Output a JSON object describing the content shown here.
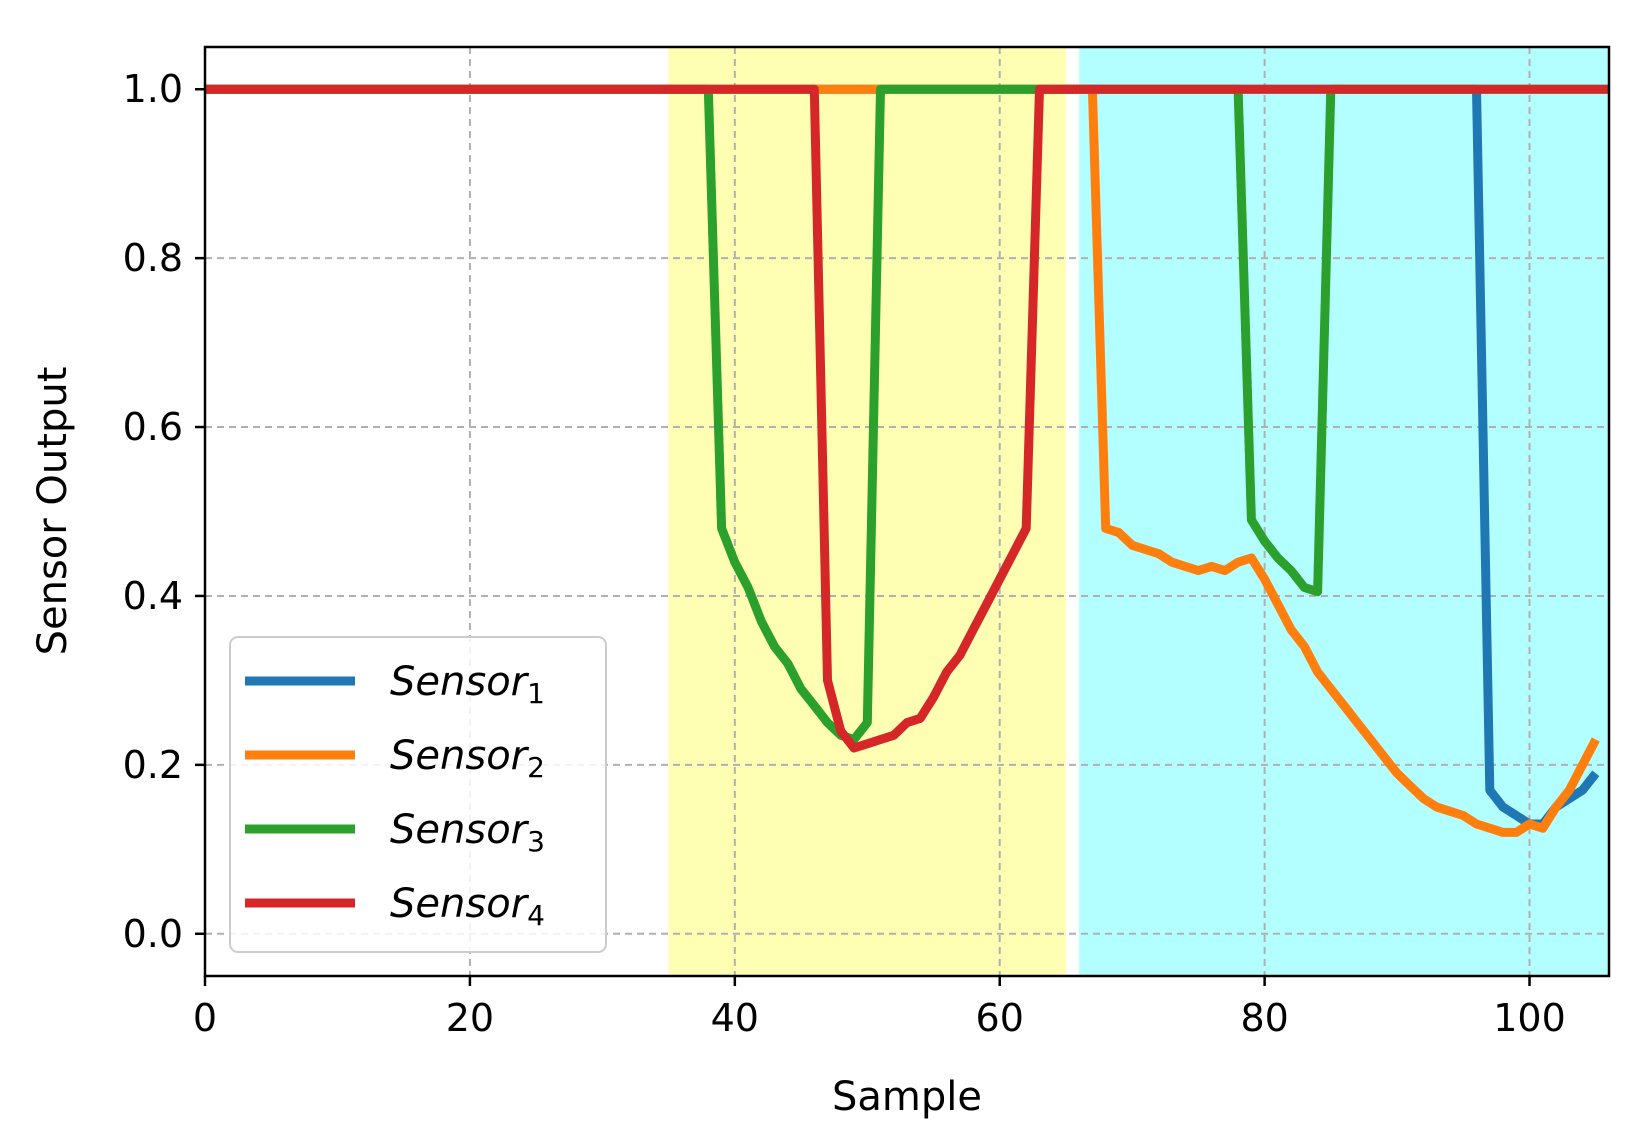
{
  "chart_data": {
    "type": "line",
    "title": "",
    "xlabel": "Sample",
    "ylabel": "Sensor Output",
    "xlim": [
      0,
      106
    ],
    "ylim": [
      -0.05,
      1.05
    ],
    "x_ticks": [
      0,
      20,
      40,
      60,
      80,
      100
    ],
    "y_ticks": [
      0.0,
      0.2,
      0.4,
      0.6,
      0.8,
      1.0
    ],
    "x_tick_labels": [
      "0",
      "20",
      "40",
      "60",
      "80",
      "100"
    ],
    "y_tick_labels": [
      "0.0",
      "0.2",
      "0.4",
      "0.6",
      "0.8",
      "1.0"
    ],
    "grid": true,
    "legend_position": "lower-left",
    "shaded_regions": [
      {
        "x_start": 35,
        "x_end": 65,
        "color": "#ffffb3"
      },
      {
        "x_start": 66,
        "x_end": 106,
        "color": "#b3ffff"
      }
    ],
    "series": [
      {
        "name_base": "Sensor",
        "name_sub": "1",
        "color": "#1f77b4",
        "points": [
          [
            0,
            1.0
          ],
          [
            96,
            1.0
          ],
          [
            97,
            0.17
          ],
          [
            98,
            0.15
          ],
          [
            99,
            0.14
          ],
          [
            100,
            0.13
          ],
          [
            101,
            0.13
          ],
          [
            102,
            0.15
          ],
          [
            103,
            0.16
          ],
          [
            104,
            0.17
          ],
          [
            105,
            0.19
          ]
        ]
      },
      {
        "name_base": "Sensor",
        "name_sub": "2",
        "color": "#ff7f0e",
        "points": [
          [
            0,
            1.0
          ],
          [
            67,
            1.0
          ],
          [
            68,
            0.48
          ],
          [
            69,
            0.475
          ],
          [
            70,
            0.46
          ],
          [
            71,
            0.455
          ],
          [
            72,
            0.45
          ],
          [
            73,
            0.44
          ],
          [
            74,
            0.435
          ],
          [
            75,
            0.43
          ],
          [
            76,
            0.435
          ],
          [
            77,
            0.43
          ],
          [
            78,
            0.44
          ],
          [
            79,
            0.445
          ],
          [
            80,
            0.42
          ],
          [
            81,
            0.39
          ],
          [
            82,
            0.36
          ],
          [
            83,
            0.34
          ],
          [
            84,
            0.31
          ],
          [
            85,
            0.29
          ],
          [
            86,
            0.27
          ],
          [
            87,
            0.25
          ],
          [
            88,
            0.23
          ],
          [
            89,
            0.21
          ],
          [
            90,
            0.19
          ],
          [
            91,
            0.175
          ],
          [
            92,
            0.16
          ],
          [
            93,
            0.15
          ],
          [
            94,
            0.145
          ],
          [
            95,
            0.14
          ],
          [
            96,
            0.13
          ],
          [
            97,
            0.125
          ],
          [
            98,
            0.12
          ],
          [
            99,
            0.12
          ],
          [
            100,
            0.13
          ],
          [
            101,
            0.125
          ],
          [
            102,
            0.15
          ],
          [
            103,
            0.17
          ],
          [
            104,
            0.2
          ],
          [
            105,
            0.23
          ]
        ]
      },
      {
        "name_base": "Sensor",
        "name_sub": "3",
        "color": "#2ca02c",
        "points": [
          [
            0,
            1.0
          ],
          [
            38,
            1.0
          ],
          [
            39,
            0.48
          ],
          [
            40,
            0.44
          ],
          [
            41,
            0.41
          ],
          [
            42,
            0.37
          ],
          [
            43,
            0.34
          ],
          [
            44,
            0.32
          ],
          [
            45,
            0.29
          ],
          [
            46,
            0.27
          ],
          [
            47,
            0.25
          ],
          [
            48,
            0.235
          ],
          [
            49,
            0.23
          ],
          [
            50,
            0.25
          ],
          [
            51,
            1.0
          ],
          [
            78,
            1.0
          ],
          [
            79,
            0.49
          ],
          [
            80,
            0.465
          ],
          [
            81,
            0.445
          ],
          [
            82,
            0.43
          ],
          [
            83,
            0.41
          ],
          [
            84,
            0.405
          ],
          [
            85,
            1.0
          ],
          [
            106,
            1.0
          ]
        ]
      },
      {
        "name_base": "Sensor",
        "name_sub": "4",
        "color": "#d62728",
        "points": [
          [
            0,
            1.0
          ],
          [
            46,
            1.0
          ],
          [
            47,
            0.3
          ],
          [
            48,
            0.24
          ],
          [
            49,
            0.22
          ],
          [
            50,
            0.225
          ],
          [
            51,
            0.23
          ],
          [
            52,
            0.235
          ],
          [
            53,
            0.25
          ],
          [
            54,
            0.255
          ],
          [
            55,
            0.28
          ],
          [
            56,
            0.31
          ],
          [
            57,
            0.33
          ],
          [
            58,
            0.36
          ],
          [
            59,
            0.39
          ],
          [
            60,
            0.42
          ],
          [
            61,
            0.45
          ],
          [
            62,
            0.48
          ],
          [
            63,
            1.0
          ],
          [
            106,
            1.0
          ]
        ]
      }
    ]
  }
}
